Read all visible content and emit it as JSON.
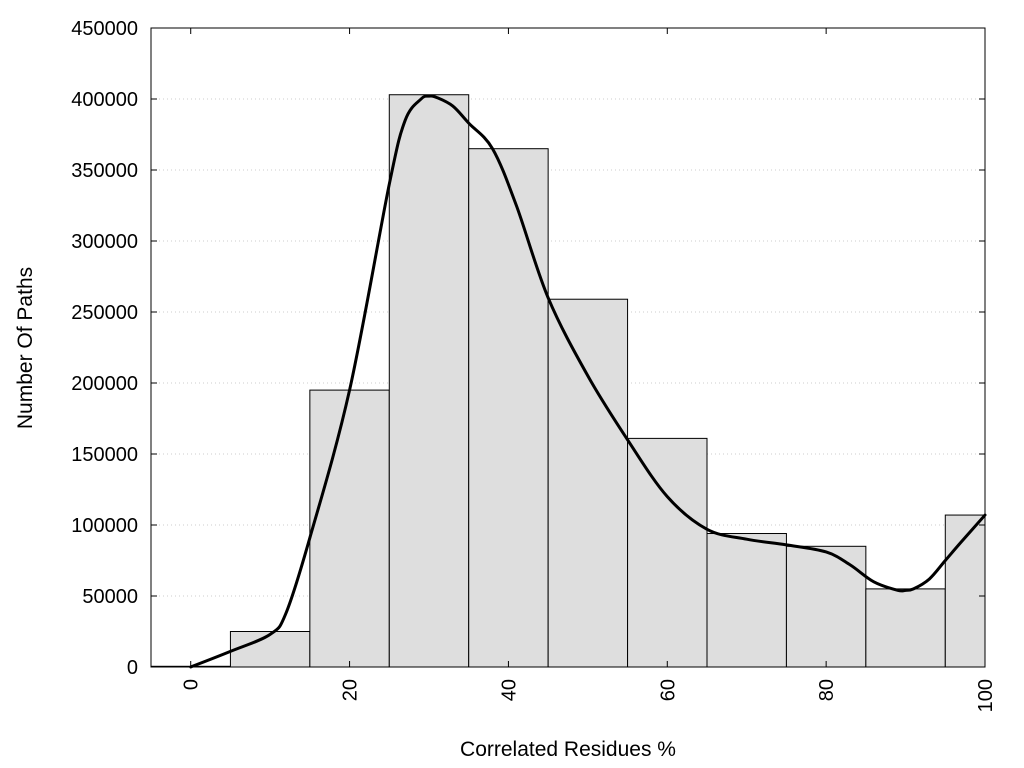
{
  "chart_data": {
    "type": "bar",
    "xlabel": "Correlated Residues %",
    "ylabel": "Number Of Paths",
    "xlim": [
      -5,
      100
    ],
    "ylim": [
      0,
      450000
    ],
    "x_ticks": [
      0,
      20,
      40,
      60,
      80,
      100
    ],
    "y_ticks": [
      0,
      50000,
      100000,
      150000,
      200000,
      250000,
      300000,
      350000,
      400000,
      450000
    ],
    "grid": "horizontal dotted",
    "bar_color": "#dedede",
    "bins": [
      {
        "x0": -5,
        "x1": 5,
        "value": 500
      },
      {
        "x0": 5,
        "x1": 15,
        "value": 25000
      },
      {
        "x0": 15,
        "x1": 25,
        "value": 195000
      },
      {
        "x0": 25,
        "x1": 35,
        "value": 403000
      },
      {
        "x0": 35,
        "x1": 45,
        "value": 365000
      },
      {
        "x0": 45,
        "x1": 55,
        "value": 259000
      },
      {
        "x0": 55,
        "x1": 65,
        "value": 161000
      },
      {
        "x0": 65,
        "x1": 75,
        "value": 94000
      },
      {
        "x0": 75,
        "x1": 85,
        "value": 85000
      },
      {
        "x0": 85,
        "x1": 95,
        "value": 55000
      },
      {
        "x0": 95,
        "x1": 100,
        "value": 107000
      }
    ],
    "density_curve": {
      "x": [
        0,
        5,
        10,
        12,
        15,
        20,
        25,
        27,
        29,
        30,
        31,
        33,
        35,
        38,
        41,
        45,
        50,
        55,
        60,
        65,
        70,
        75,
        80,
        83,
        86,
        89,
        90,
        91,
        93,
        95,
        97,
        100
      ],
      "y": [
        0,
        11000,
        23000,
        38000,
        91000,
        195000,
        340000,
        385000,
        400000,
        402000,
        401000,
        395000,
        383000,
        365000,
        325000,
        260000,
        205000,
        160000,
        120000,
        97000,
        90000,
        86000,
        81000,
        72000,
        60000,
        54000,
        54000,
        55000,
        62000,
        75000,
        88000,
        107000
      ]
    }
  }
}
